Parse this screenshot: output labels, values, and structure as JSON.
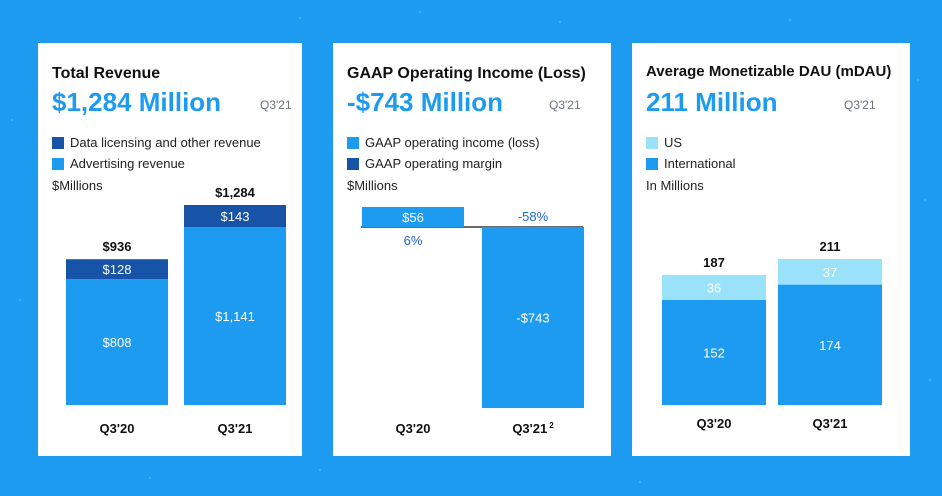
{
  "colors": {
    "background": "#1d9bf0",
    "data_licensing": "#1753a6",
    "advertising": "#1d9bf0",
    "income_positive": "#1d9bf0",
    "income_negative": "#1d9bf0",
    "us": "#99e2fa",
    "international": "#1d9bf0",
    "margin_text": "#1d64d4"
  },
  "chart_data": [
    {
      "type": "bar",
      "stacked": true,
      "title": "Total Revenue",
      "headline": "$1,284 Million",
      "period": "Q3'21",
      "unit_label": "$Millions",
      "categories": [
        "Q3'20",
        "Q3'21"
      ],
      "series": [
        {
          "name": "Advertising revenue",
          "values": [
            808,
            1141
          ],
          "labels": [
            "$808",
            "$1,141"
          ]
        },
        {
          "name": "Data licensing and other revenue",
          "values": [
            128,
            143
          ],
          "labels": [
            "$128",
            "$143"
          ]
        }
      ],
      "legend": [
        "Data licensing and other revenue",
        "Advertising revenue"
      ],
      "totals": [
        936,
        1284
      ],
      "total_labels": [
        "$936",
        "$1,284"
      ],
      "ylim": [
        0,
        1284
      ]
    },
    {
      "type": "bar",
      "title": "GAAP Operating Income (Loss)",
      "headline": "-$743 Million",
      "period": "Q3'21",
      "unit_label": "$Millions",
      "categories": [
        "Q3'20",
        "Q3'21"
      ],
      "category_notes": [
        "",
        "2"
      ],
      "series": [
        {
          "name": "GAAP operating income (loss)",
          "values": [
            56,
            -743
          ],
          "labels": [
            "$56",
            "-$743"
          ]
        }
      ],
      "margin": {
        "name": "GAAP operating margin",
        "values": [
          6,
          -58
        ],
        "labels": [
          "6%",
          "-58%"
        ]
      },
      "legend": [
        "GAAP operating income (loss)",
        "GAAP operating margin"
      ],
      "ylim": [
        -743,
        56
      ]
    },
    {
      "type": "bar",
      "stacked": true,
      "title": "Average Monetizable DAU (mDAU)",
      "headline": "211 Million",
      "period": "Q3'21",
      "unit_label": "In Millions",
      "categories": [
        "Q3'20",
        "Q3'21"
      ],
      "series": [
        {
          "name": "International",
          "values": [
            152,
            174
          ],
          "labels": [
            "152",
            "174"
          ]
        },
        {
          "name": "US",
          "values": [
            36,
            37
          ],
          "labels": [
            "36",
            "37"
          ]
        }
      ],
      "legend": [
        "US",
        "International"
      ],
      "totals": [
        187,
        211
      ],
      "total_labels": [
        "187",
        "211"
      ],
      "ylim": [
        0,
        211
      ]
    }
  ]
}
